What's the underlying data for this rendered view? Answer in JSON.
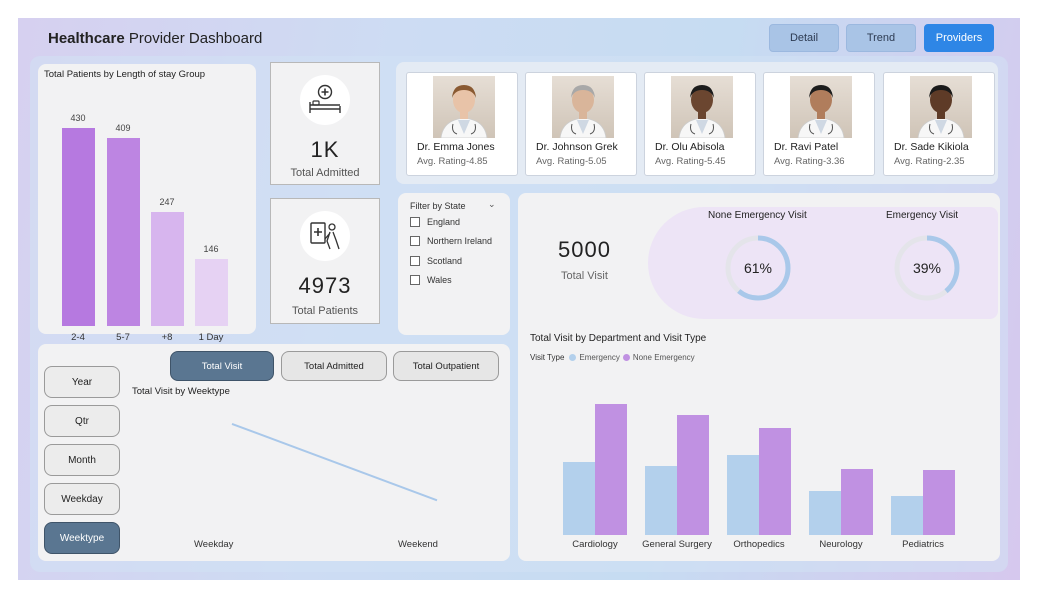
{
  "header": {
    "title_bold": "Healthcare",
    "title_rest": " Provider Dashboard"
  },
  "nav": [
    {
      "label": "Detail",
      "active": false
    },
    {
      "label": "Trend",
      "active": false
    },
    {
      "label": "Providers",
      "active": true
    }
  ],
  "los_chart": {
    "title": "Total Patients by Length of stay Group",
    "chart_data": {
      "type": "bar",
      "categories": [
        "2-4",
        "5-7",
        "+8",
        "1 Day"
      ],
      "values": [
        430,
        409,
        247,
        146
      ],
      "colors": [
        "#b679e0",
        "#bd85e2",
        "#d7b5ee",
        "#e6d2f3"
      ]
    }
  },
  "kpis": {
    "admitted": {
      "value": "1K",
      "label": "Total Admitted",
      "icon": "hospital-bed-icon"
    },
    "patients": {
      "value": "4973",
      "label": "Total Patients",
      "icon": "patient-icon"
    }
  },
  "doctors": [
    {
      "name": "Dr. Emma Jones",
      "rating": "Avg. Rating-4.85"
    },
    {
      "name": "Dr. Johnson Grek",
      "rating": "Avg. Rating-5.05"
    },
    {
      "name": "Dr. Olu Abisola",
      "rating": "Avg. Rating-5.45"
    },
    {
      "name": "Dr. Ravi Patel",
      "rating": "Avg. Rating-3.36"
    },
    {
      "name": "Dr. Sade Kikiola",
      "rating": "Avg. Rating-2.35"
    }
  ],
  "filter": {
    "title": "Filter by State",
    "options": [
      "England",
      "Northern Ireland",
      "Scotland",
      "Wales"
    ]
  },
  "visits": {
    "total_value": "5000",
    "total_label": "Total Visit",
    "none_emergency": {
      "title": "None Emergency Visit",
      "value": "61%",
      "fraction": 0.61
    },
    "emergency": {
      "title": "Emergency Visit",
      "value": "39%",
      "fraction": 0.39
    }
  },
  "toggle_buttons": [
    {
      "label": "Total Visit",
      "active": true
    },
    {
      "label": "Total Admitted",
      "active": false
    },
    {
      "label": "Total Outpatient",
      "active": false
    }
  ],
  "period_buttons": [
    {
      "label": "Year",
      "active": false
    },
    {
      "label": "Qtr",
      "active": false
    },
    {
      "label": "Month",
      "active": false
    },
    {
      "label": "Weekday",
      "active": false
    },
    {
      "label": "Weektype",
      "active": true
    }
  ],
  "weektype_chart": {
    "title": "Total Visit by Weektype",
    "chart_data": {
      "type": "line",
      "x": [
        "Weekday",
        "Weekend"
      ],
      "values": [
        2500,
        1800
      ],
      "color": "#a9c8ea"
    }
  },
  "dept_chart": {
    "title": "Total Visit by Department and Visit Type",
    "legend_title": "Visit Type",
    "chart_data": {
      "type": "bar",
      "categories": [
        "Cardiology",
        "General Surgery",
        "Orthopedics",
        "Neurology",
        "Pediatrics"
      ],
      "series": [
        {
          "name": "Emergency",
          "values": [
            230,
            220,
            255,
            140,
            125
          ],
          "color": "#b3d0ec"
        },
        {
          "name": "None Emergency",
          "values": [
            415,
            380,
            340,
            210,
            205
          ],
          "color": "#c091e2"
        }
      ]
    }
  }
}
